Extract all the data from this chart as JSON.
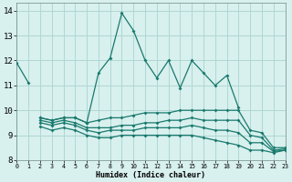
{
  "xlabel": "Humidex (Indice chaleur)",
  "xlim": [
    0,
    23
  ],
  "ylim": [
    8,
    14.3
  ],
  "yticks": [
    8,
    9,
    10,
    11,
    12,
    13,
    14
  ],
  "xticks": [
    0,
    1,
    2,
    3,
    4,
    5,
    6,
    7,
    8,
    9,
    10,
    11,
    12,
    13,
    14,
    15,
    16,
    17,
    18,
    19,
    20,
    21,
    22,
    23
  ],
  "bg_color": "#d8f0ee",
  "grid_color": "#aed8d4",
  "line_color": "#1a7a6e",
  "series": [
    [
      11.9,
      11.1,
      null,
      null,
      null,
      null,
      9.5,
      11.5,
      12.1,
      13.9,
      13.2,
      12.0,
      11.3,
      12.0,
      10.9,
      12.0,
      11.5,
      11.0,
      11.4,
      10.1,
      null,
      null,
      null,
      null
    ],
    [
      null,
      null,
      9.7,
      9.6,
      9.7,
      9.7,
      9.5,
      null,
      null,
      null,
      null,
      null,
      null,
      null,
      null,
      null,
      null,
      null,
      null,
      null,
      null,
      null,
      null,
      null
    ],
    [
      null,
      null,
      9.7,
      9.6,
      9.7,
      9.7,
      9.5,
      9.6,
      9.7,
      9.7,
      9.8,
      9.9,
      9.9,
      9.9,
      10.0,
      10.0,
      10.0,
      10.0,
      10.0,
      10.0,
      9.2,
      9.1,
      8.5,
      8.5
    ],
    [
      null,
      null,
      9.6,
      9.5,
      9.6,
      9.5,
      9.3,
      9.3,
      9.3,
      9.4,
      9.4,
      9.5,
      9.5,
      9.6,
      9.6,
      9.7,
      9.6,
      9.6,
      9.6,
      9.6,
      9.0,
      8.9,
      8.4,
      8.45
    ],
    [
      null,
      null,
      9.5,
      9.4,
      9.5,
      9.4,
      9.2,
      9.1,
      9.2,
      9.2,
      9.2,
      9.3,
      9.3,
      9.3,
      9.3,
      9.4,
      9.3,
      9.2,
      9.2,
      9.1,
      8.7,
      8.7,
      8.35,
      8.4
    ],
    [
      null,
      null,
      9.35,
      9.2,
      9.3,
      9.2,
      9.0,
      8.9,
      8.9,
      9.0,
      9.0,
      9.0,
      9.0,
      9.0,
      9.0,
      9.0,
      8.9,
      8.8,
      8.7,
      8.6,
      8.4,
      8.4,
      8.3,
      8.4
    ]
  ]
}
